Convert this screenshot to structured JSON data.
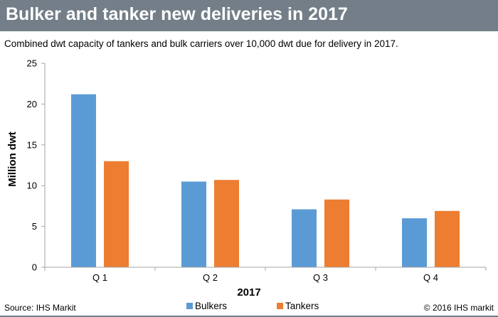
{
  "header": {
    "title": "Bulker and tanker new deliveries in 2017"
  },
  "subtitle": "Combined dwt capacity of tankers and bulk carriers over 10,000 dwt due for delivery in 2017.",
  "footer": {
    "source": "Source: IHS Markit",
    "copyright": "© 2016 IHS markit"
  },
  "colors": {
    "header_bg": "#737e88",
    "bulkers": "#5b9bd5",
    "tankers": "#ed7d31",
    "axis": "#a6a6a6"
  },
  "chart_data": {
    "type": "bar",
    "categories": [
      "Q 1",
      "Q 2",
      "Q 3",
      "Q 4"
    ],
    "series": [
      {
        "name": "Bulkers",
        "values": [
          21.2,
          10.5,
          7.1,
          6.0
        ]
      },
      {
        "name": "Tankers",
        "values": [
          13.0,
          10.7,
          8.3,
          6.9
        ]
      }
    ],
    "xlabel": "2017",
    "ylabel": "Million dwt",
    "ylim": [
      0,
      25
    ],
    "yticks": [
      0,
      5,
      10,
      15,
      20,
      25
    ],
    "grid": false,
    "legend": "bottom-center"
  }
}
